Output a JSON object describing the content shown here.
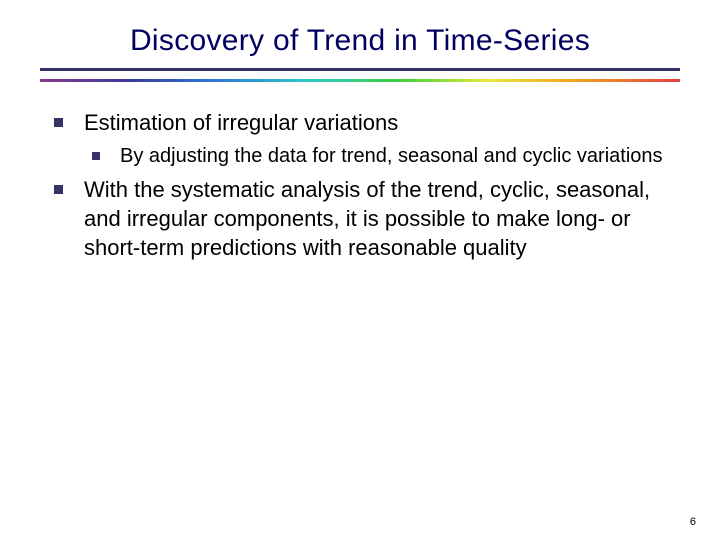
{
  "title": "Discovery of Trend in Time-Series",
  "title_color": "#000060",
  "title_fontsize": 30,
  "body_fontsize_l1": 22,
  "body_fontsize_l2": 20,
  "bullet_color": "#333366",
  "rule_top_color": "#333366",
  "rainbow_gradient": [
    "#8b3a8b",
    "#3a3a9e",
    "#2e7bd6",
    "#2fc8c8",
    "#3bd13b",
    "#e8e83a",
    "#f0a020",
    "#e04040"
  ],
  "bullets": {
    "item1": {
      "text": "Estimation of irregular variations",
      "sub": {
        "item1": "By adjusting the data for trend, seasonal and cyclic variations"
      }
    },
    "item2": {
      "text": "With the systematic analysis of the trend, cyclic, seasonal, and irregular components, it is possible to make long- or short-term predictions with reasonable quality"
    }
  },
  "page_number": "6",
  "background_color": "#ffffff"
}
